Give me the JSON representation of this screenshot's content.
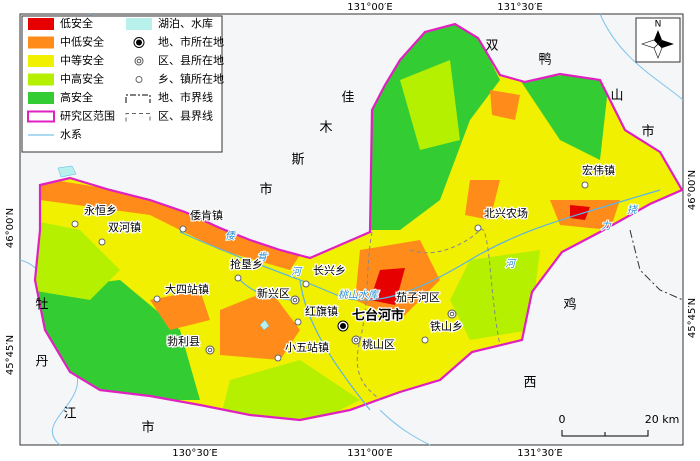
{
  "legend": [
    {
      "label": "低安全",
      "kind": "fill",
      "color": "#e60000"
    },
    {
      "label": "中低安全",
      "kind": "fill",
      "color": "#ff8c1a"
    },
    {
      "label": "中等安全",
      "kind": "fill",
      "color": "#f0f000"
    },
    {
      "label": "中高安全",
      "kind": "fill",
      "color": "#b4f000"
    },
    {
      "label": "高安全",
      "kind": "fill",
      "color": "#33cc33"
    },
    {
      "label": "研究区范围",
      "kind": "boundary",
      "color": "#e020c0"
    },
    {
      "label": "水系",
      "kind": "river",
      "color": "#5ab4e6"
    },
    {
      "label": "湖泊、水库",
      "kind": "lake",
      "color": "#b8f0ec"
    },
    {
      "label": "地、市所在地",
      "kind": "city"
    },
    {
      "label": "区、县所在地",
      "kind": "county"
    },
    {
      "label": "乡、镇所在地",
      "kind": "town"
    },
    {
      "label": "地、市界线",
      "kind": "citybound"
    },
    {
      "label": "区、县界线",
      "kind": "countybound"
    }
  ],
  "coordinates": {
    "top": [
      "131°00′E",
      "131°30′E"
    ],
    "bottom": [
      "130°30′E",
      "131°00′E",
      "131°30′E"
    ],
    "left": [
      "46°00′N",
      "45°45′N"
    ],
    "right": [
      "46°00′N",
      "45°45′N"
    ]
  },
  "regions": [
    "双",
    "鸭",
    "山",
    "市",
    "佳",
    "木",
    "斯",
    "市",
    "牡",
    "丹",
    "江",
    "市",
    "鸡",
    "西"
  ],
  "places": [
    {
      "label": "永恒乡",
      "kind": "town"
    },
    {
      "label": "双河镇",
      "kind": "town"
    },
    {
      "label": "倭肯镇",
      "kind": "town"
    },
    {
      "label": "大四站镇",
      "kind": "town"
    },
    {
      "label": "抢垦乡",
      "kind": "town"
    },
    {
      "label": "长兴乡",
      "kind": "town"
    },
    {
      "label": "新兴区",
      "kind": "county"
    },
    {
      "label": "红旗镇",
      "kind": "town"
    },
    {
      "label": "七台河市",
      "kind": "city"
    },
    {
      "label": "茄子河区",
      "kind": "county"
    },
    {
      "label": "桃山区",
      "kind": "county"
    },
    {
      "label": "铁山乡",
      "kind": "town"
    },
    {
      "label": "勃利县",
      "kind": "county"
    },
    {
      "label": "小五站镇",
      "kind": "town"
    },
    {
      "label": "宏伟镇",
      "kind": "town"
    },
    {
      "label": "北兴农场",
      "kind": "town"
    }
  ],
  "water_labels": [
    "倭",
    "肯",
    "河",
    "桃山水库",
    "挠",
    "力",
    "河"
  ],
  "compass": "N",
  "scale": {
    "start": "0",
    "end": "20 km"
  }
}
